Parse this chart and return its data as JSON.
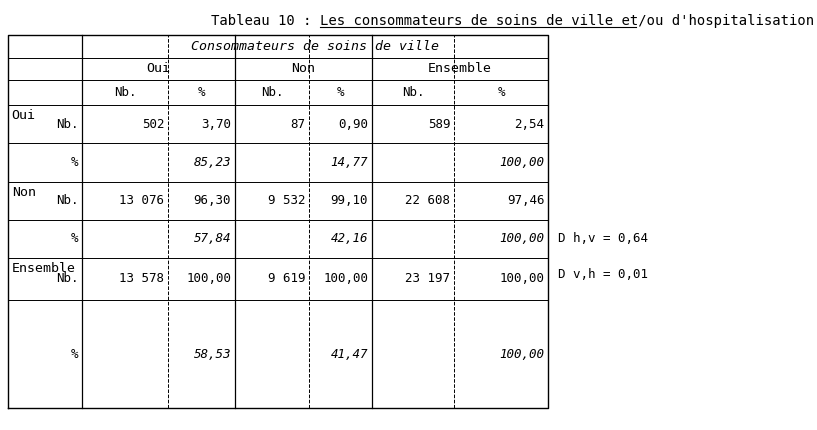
{
  "title_prefix": "Tableau 10 : ",
  "title_underlined": "Les consommateurs de soins de ville et/ou d'hospitalisation",
  "col_header_main": "Consommateurs de soins de ville",
  "col_header_sub1": "Oui",
  "col_header_sub2": "Non",
  "col_header_sub3": "Ensemble",
  "col_sub_labels": [
    "Nb.",
    "%",
    "Nb.",
    "%",
    "Nb.",
    "%"
  ],
  "row_groups": [
    "Oui",
    "Non",
    "Ensemble"
  ],
  "row_sub_labels": [
    "Nb.",
    "%"
  ],
  "data": {
    "Oui": {
      "Nb": [
        "502",
        "87",
        "589"
      ],
      "pct": [
        "3,70",
        "0,90",
        "2,54"
      ],
      "pct2": [
        "85,23",
        "14,77",
        "100,00"
      ]
    },
    "Non": {
      "Nb": [
        "13 076",
        "9 532",
        "22 608"
      ],
      "pct": [
        "96,30",
        "99,10",
        "97,46"
      ],
      "pct2": [
        "57,84",
        "42,16",
        "100,00"
      ]
    },
    "Ensemble": {
      "Nb": [
        "13 578",
        "9 619",
        "23 197"
      ],
      "pct": [
        "100,00",
        "100,00",
        "100,00"
      ],
      "pct2": [
        "58,53",
        "41,47",
        "100,00"
      ]
    }
  },
  "annotation1": "D h,v = 0,64",
  "annotation2": "D v,h = 0,01",
  "bg_color": "#ffffff",
  "text_color": "#000000",
  "font_family": "monospace"
}
